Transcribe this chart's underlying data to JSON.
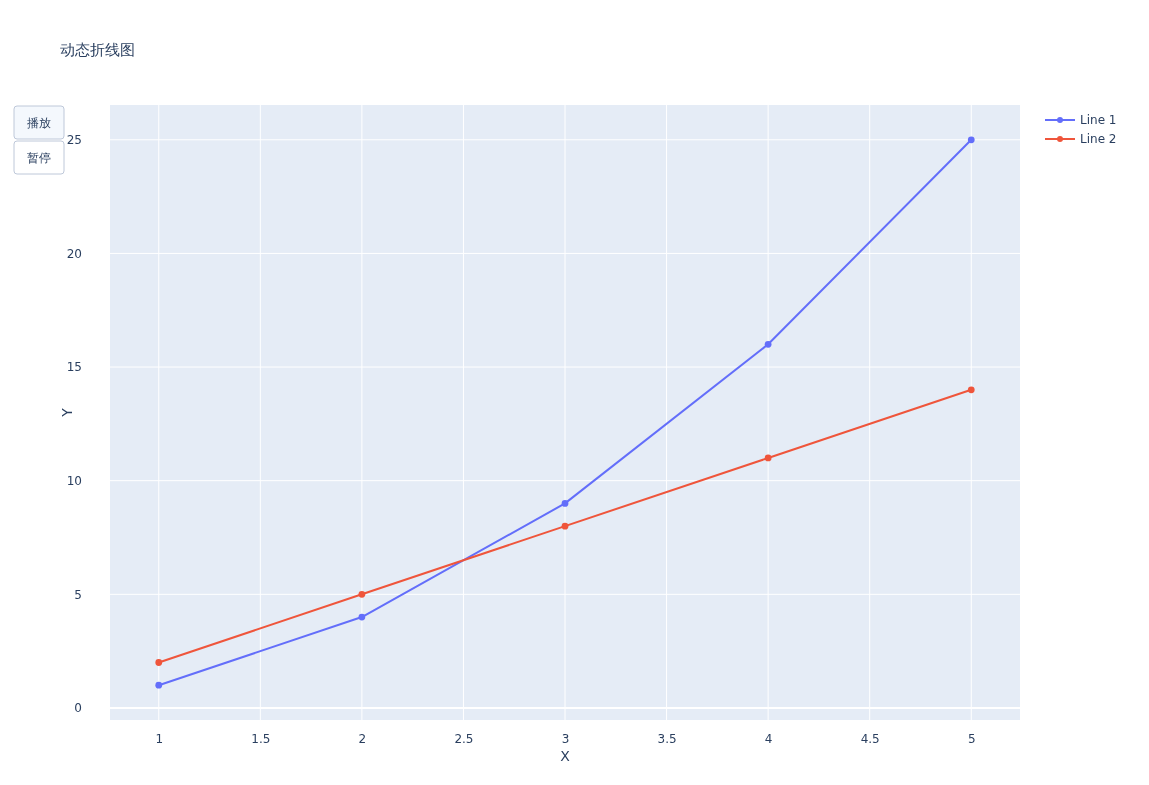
{
  "chart_data": {
    "type": "line",
    "title": "动态折线图",
    "xlabel": "X",
    "ylabel": "Y",
    "annotations": [
      "播放",
      "暂停"
    ],
    "x": [
      1,
      2,
      3,
      4,
      5
    ],
    "series": [
      {
        "name": "Line 1",
        "color": "#636efa",
        "values": [
          1,
          4,
          9,
          16,
          25
        ]
      },
      {
        "name": "Line 2",
        "color": "#ef553b",
        "values": [
          2,
          5,
          8,
          11,
          14
        ]
      }
    ],
    "xlim": [
      0.76,
      5.24
    ],
    "xticks": [
      1,
      1.5,
      2,
      2.5,
      3,
      3.5,
      4,
      4.5,
      5
    ],
    "ylim": [
      -0.53,
      26.53
    ],
    "yticks": [
      0,
      5,
      10,
      15,
      20,
      25
    ],
    "grid": true,
    "legend": "top right",
    "marker": "circle",
    "line_style": "solid"
  }
}
